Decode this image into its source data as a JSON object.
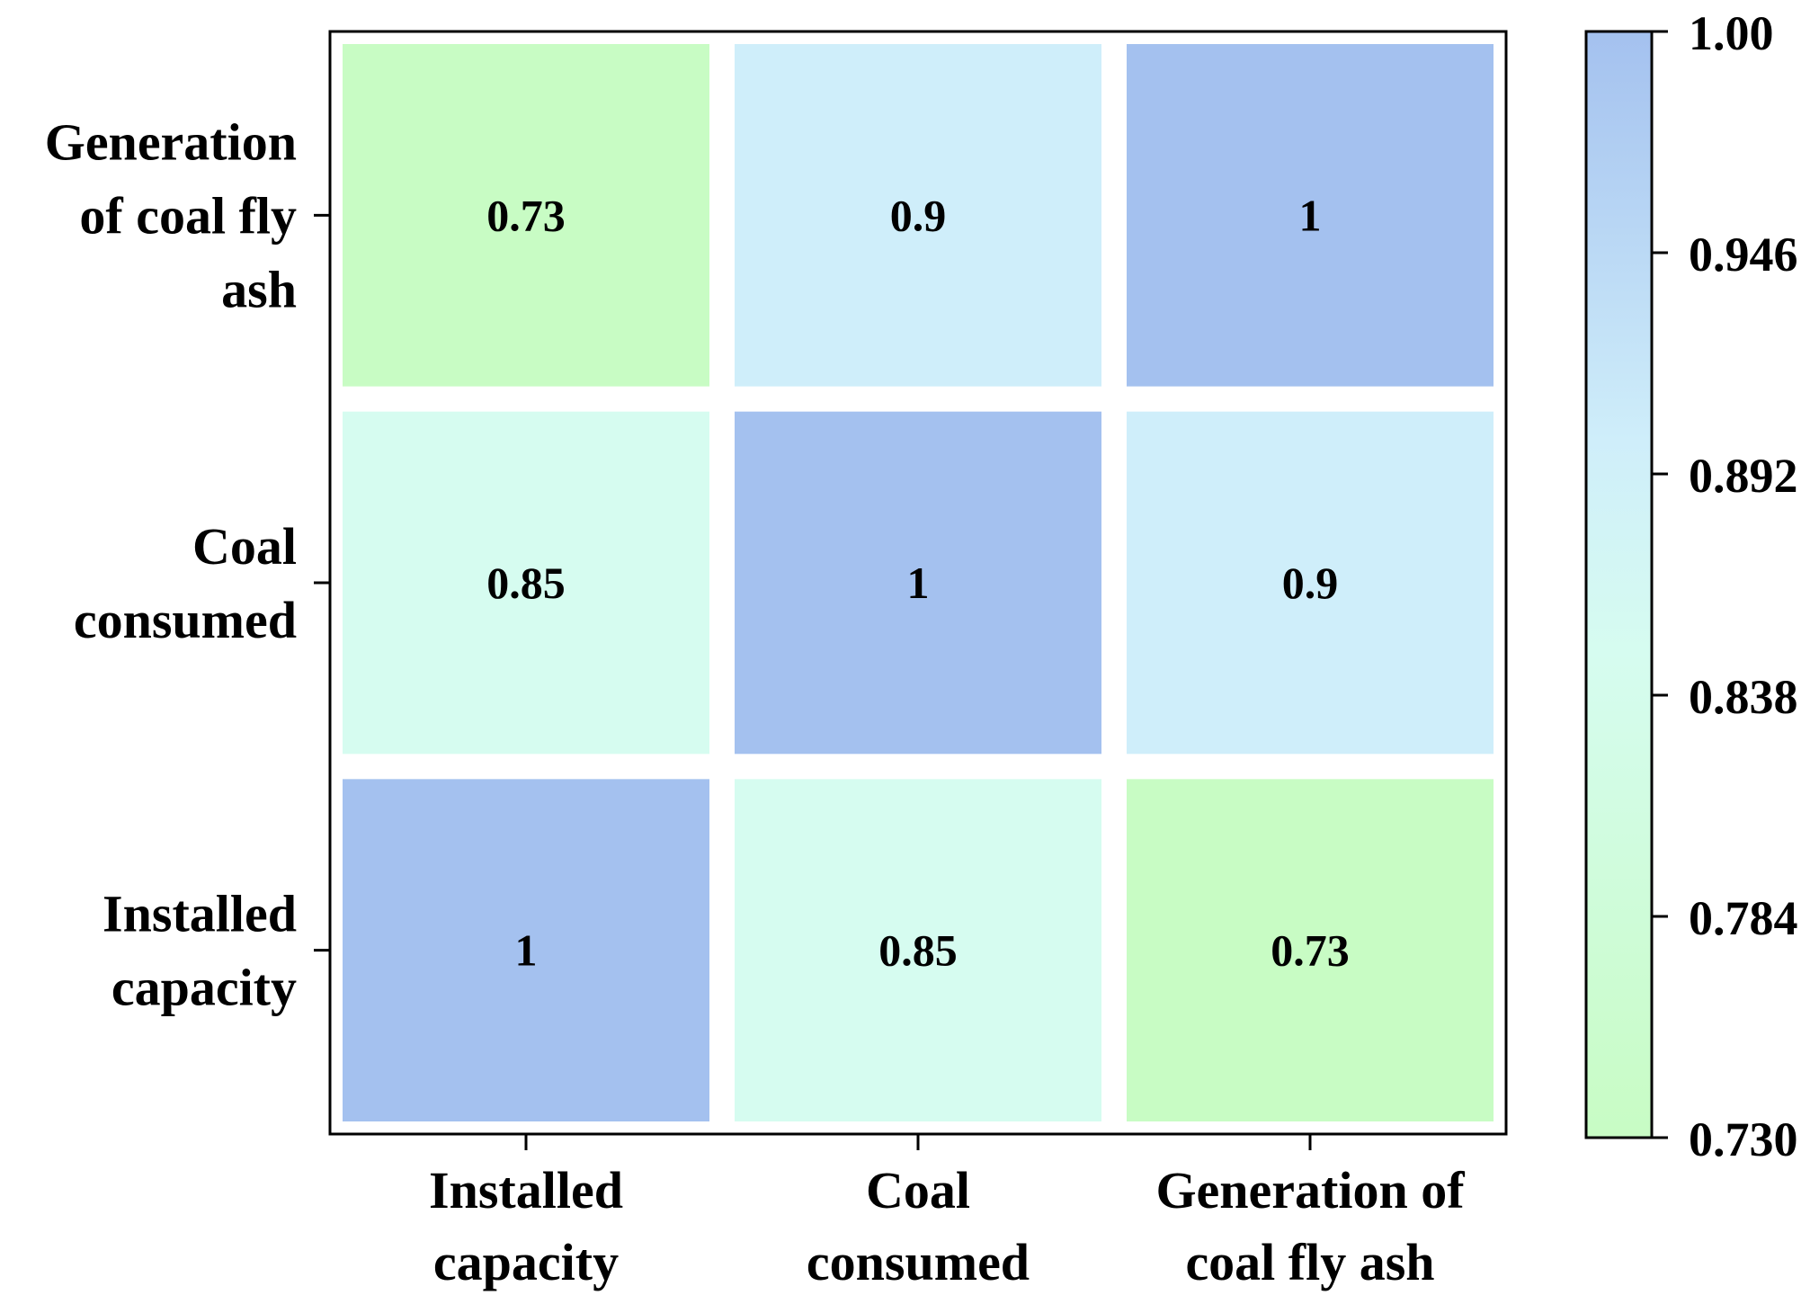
{
  "chart_data": {
    "type": "heatmap",
    "x_categories": [
      "Installed capacity",
      "Coal consumed",
      "Generation of coal fly ash"
    ],
    "y_categories": [
      "Installed capacity",
      "Coal consumed",
      "Generation of coal fly ash"
    ],
    "x_tick_lines": [
      [
        "Installed",
        "capacity"
      ],
      [
        "Coal",
        "consumed"
      ],
      [
        "Generation of",
        "coal fly ash"
      ]
    ],
    "y_tick_lines": [
      [
        "Installed",
        "capacity"
      ],
      [
        "Coal",
        "consumed"
      ],
      [
        "Generation",
        "of coal fly",
        "ash"
      ]
    ],
    "values": [
      [
        1,
        0.85,
        0.73
      ],
      [
        0.85,
        1,
        0.9
      ],
      [
        0.73,
        0.9,
        1
      ]
    ],
    "cell_labels": [
      [
        "1",
        "0.85",
        "0.73"
      ],
      [
        "0.85",
        "1",
        "0.9"
      ],
      [
        "0.73",
        "0.9",
        "1"
      ]
    ],
    "colorbar": {
      "min": 0.73,
      "max": 1.0,
      "ticks": [
        0.73,
        0.784,
        0.838,
        0.892,
        0.946,
        1.0
      ],
      "tick_labels": [
        "0.730",
        "0.784",
        "0.838",
        "0.892",
        "0.946",
        "1.00"
      ],
      "colors": [
        "#c8fcc4",
        "#d6fcf0",
        "#cfeefa",
        "#a4c1ef"
      ],
      "stops": [
        0,
        0.44,
        0.63,
        1
      ]
    },
    "title": "",
    "xlabel": "",
    "ylabel": ""
  }
}
